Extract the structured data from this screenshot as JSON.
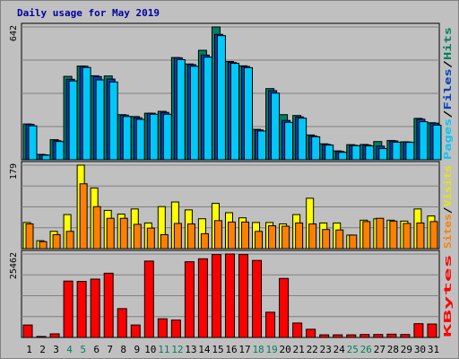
{
  "chart_data": [
    {
      "type": "bar",
      "title": "Daily usage for May 2019",
      "y_max_label": "642",
      "ylim": [
        0,
        642
      ],
      "side_label": [
        {
          "text": "Pages",
          "color": "#00c8f8"
        },
        {
          "text": "/",
          "color": "#000000"
        },
        {
          "text": "Files",
          "color": "#0040c0"
        },
        {
          "text": "/",
          "color": "#000000"
        },
        {
          "text": "Hits",
          "color": "#008060"
        }
      ],
      "categories": [
        "1",
        "2",
        "3",
        "4",
        "5",
        "6",
        "7",
        "8",
        "9",
        "10",
        "11",
        "12",
        "13",
        "14",
        "15",
        "16",
        "17",
        "18",
        "19",
        "20",
        "21",
        "22",
        "23",
        "24",
        "25",
        "26",
        "27",
        "28",
        "29",
        "30",
        "31"
      ],
      "series": [
        {
          "name": "Hits",
          "color": "#008060",
          "values": [
            173,
            26,
            97,
            403,
            453,
            406,
            405,
            218,
            209,
            225,
            234,
            494,
            463,
            529,
            642,
            475,
            454,
            147,
            344,
            218,
            214,
            120,
            77,
            43,
            73,
            74,
            88,
            93,
            87,
            200,
            179
          ]
        },
        {
          "name": "Files",
          "color": "#0040c0",
          "values": [
            171,
            24,
            92,
            389,
            452,
            402,
            390,
            216,
            203,
            225,
            229,
            493,
            460,
            506,
            606,
            470,
            451,
            144,
            334,
            190,
            207,
            115,
            74,
            40,
            70,
            71,
            66,
            91,
            86,
            196,
            177
          ]
        },
        {
          "name": "Pages",
          "color": "#00c8f8",
          "values": [
            164,
            22,
            88,
            381,
            446,
            386,
            376,
            209,
            195,
            220,
            220,
            484,
            452,
            496,
            600,
            466,
            445,
            139,
            322,
            181,
            201,
            111,
            71,
            36,
            68,
            67,
            54,
            85,
            84,
            184,
            167
          ]
        }
      ]
    },
    {
      "type": "bar",
      "y_max_label": "179",
      "ylim": [
        0,
        179
      ],
      "side_label": [
        {
          "text": "Sites",
          "color": "#ff8000"
        },
        {
          "text": "/",
          "color": "#000000"
        },
        {
          "text": "Visits",
          "color": "#e8e800"
        }
      ],
      "categories": [
        "1",
        "2",
        "3",
        "4",
        "5",
        "6",
        "7",
        "8",
        "9",
        "10",
        "11",
        "12",
        "13",
        "14",
        "15",
        "16",
        "17",
        "18",
        "19",
        "20",
        "21",
        "22",
        "23",
        "24",
        "25",
        "26",
        "27",
        "28",
        "29",
        "30",
        "31"
      ],
      "series": [
        {
          "name": "Visits",
          "color": "#ffff00",
          "values": [
            56,
            17,
            37,
            73,
            179,
            130,
            82,
            74,
            85,
            55,
            90,
            100,
            83,
            64,
            97,
            77,
            66,
            56,
            56,
            53,
            73,
            108,
            55,
            55,
            29,
            61,
            64,
            61,
            59,
            85,
            70
          ]
        },
        {
          "name": "Sites",
          "color": "#ff8000",
          "values": [
            53,
            15,
            30,
            37,
            139,
            90,
            65,
            65,
            52,
            44,
            30,
            54,
            53,
            32,
            60,
            57,
            57,
            37,
            49,
            48,
            55,
            53,
            41,
            40,
            29,
            58,
            65,
            59,
            54,
            55,
            58
          ]
        }
      ]
    },
    {
      "type": "bar",
      "y_max_label": "25462",
      "ylim": [
        0,
        25462
      ],
      "side_label": [
        {
          "text": "KBytes",
          "color": "#ff0000"
        }
      ],
      "categories": [
        "1",
        "2",
        "3",
        "4",
        "5",
        "6",
        "7",
        "8",
        "9",
        "10",
        "11",
        "12",
        "13",
        "14",
        "15",
        "16",
        "17",
        "18",
        "19",
        "20",
        "21",
        "22",
        "23",
        "24",
        "25",
        "26",
        "27",
        "28",
        "29",
        "30",
        "31"
      ],
      "series": [
        {
          "name": "KBytes",
          "color": "#ff0000",
          "values": [
            3800,
            300,
            1100,
            17200,
            17100,
            17800,
            19600,
            8800,
            3800,
            23300,
            5700,
            5300,
            23100,
            24000,
            25300,
            25462,
            25300,
            23500,
            7700,
            18000,
            4400,
            2500,
            800,
            800,
            800,
            900,
            900,
            1000,
            900,
            4200,
            4100
          ]
        }
      ]
    }
  ],
  "day_colors": {
    "weekday": "#000000",
    "weekend": "#00805c"
  },
  "weekend_days": [
    "4",
    "5",
    "11",
    "12",
    "18",
    "19",
    "25",
    "26"
  ]
}
